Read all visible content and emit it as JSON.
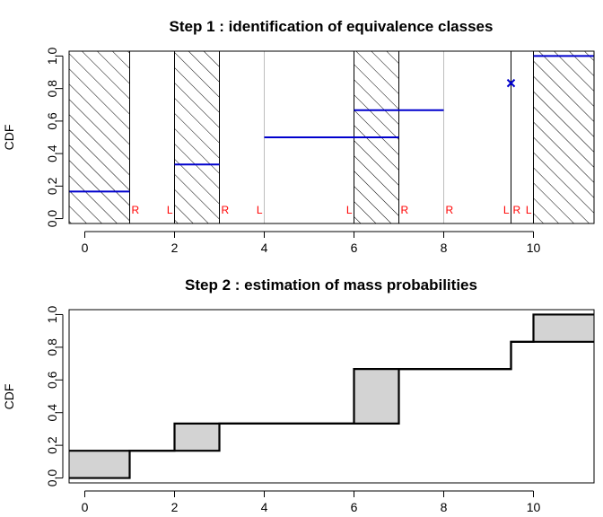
{
  "chart_data": [
    {
      "type": "step",
      "title": "Step 1 : identification of equivalence classes",
      "xlabel": "",
      "ylabel": "CDF",
      "xlim": [
        -0.35,
        11.35
      ],
      "ylim": [
        -0.03,
        1.03
      ],
      "xticks": [
        0,
        2,
        4,
        6,
        8,
        10
      ],
      "yticks": [
        0.0,
        0.2,
        0.4,
        0.6,
        0.8,
        1.0
      ],
      "ytick_labels": [
        "0.0",
        "0.2",
        "0.4",
        "0.6",
        "0.8",
        "1.0"
      ],
      "hatched_intervals": [
        [
          -0.35,
          1
        ],
        [
          2,
          3
        ],
        [
          6,
          7
        ],
        [
          10,
          11.35
        ]
      ],
      "cdf_segments": [
        {
          "x": [
            -0.35,
            1
          ],
          "y": 0.1667
        },
        {
          "x": [
            2,
            3
          ],
          "y": 0.3333
        },
        {
          "x": [
            4,
            7
          ],
          "y": 0.5
        },
        {
          "x": [
            6,
            8
          ],
          "y": 0.6667
        },
        {
          "x": [
            10,
            11.35
          ],
          "y": 1.0
        }
      ],
      "point_mass": {
        "x": 9.5,
        "y": 0.8333,
        "marker": "x"
      },
      "vertical_lines": [
        {
          "x": 1,
          "color": "#000000"
        },
        {
          "x": 2,
          "color": "#000000"
        },
        {
          "x": 3,
          "color": "#000000"
        },
        {
          "x": 4,
          "color": "#bebebe"
        },
        {
          "x": 6,
          "color": "#000000"
        },
        {
          "x": 7,
          "color": "#000000"
        },
        {
          "x": 8,
          "color": "#bebebe"
        },
        {
          "x": 9.5,
          "color": "#000000"
        },
        {
          "x": 10,
          "color": "#000000"
        }
      ],
      "endpoint_labels": [
        {
          "x": 1,
          "text": "R"
        },
        {
          "x": 2,
          "text": "L"
        },
        {
          "x": 3,
          "text": "R"
        },
        {
          "x": 4,
          "text": "L"
        },
        {
          "x": 6,
          "text": "L"
        },
        {
          "x": 7,
          "text": "R"
        },
        {
          "x": 8,
          "text": "R"
        },
        {
          "x": 9.5,
          "text": "L"
        },
        {
          "x": 9.5,
          "text": "R"
        },
        {
          "x": 10,
          "text": "L"
        }
      ],
      "colors": {
        "cdf": "#0000cd",
        "labels": "#ff0000",
        "frame": "#000000"
      }
    },
    {
      "type": "step",
      "title": "Step 2 : estimation of mass probabilities",
      "xlabel": "",
      "ylabel": "CDF",
      "xlim": [
        -0.35,
        11.35
      ],
      "ylim": [
        -0.03,
        1.03
      ],
      "xticks": [
        0,
        2,
        4,
        6,
        8,
        10
      ],
      "yticks": [
        0.0,
        0.2,
        0.4,
        0.6,
        0.8,
        1.0
      ],
      "ytick_labels": [
        "0.0",
        "0.2",
        "0.4",
        "0.6",
        "0.8",
        "1.0"
      ],
      "boxes": [
        {
          "x": [
            -0.35,
            1
          ],
          "y": [
            0.0,
            0.1667
          ]
        },
        {
          "x": [
            2,
            3
          ],
          "y": [
            0.1667,
            0.3333
          ]
        },
        {
          "x": [
            6,
            7
          ],
          "y": [
            0.3333,
            0.6667
          ]
        },
        {
          "x": [
            10,
            11.35
          ],
          "y": [
            0.8333,
            1.0
          ]
        }
      ],
      "lower_bound": [
        [
          -0.35,
          0
        ],
        [
          1,
          0
        ],
        [
          1,
          0.1667
        ],
        [
          3,
          0.1667
        ],
        [
          3,
          0.3333
        ],
        [
          7,
          0.3333
        ],
        [
          7,
          0.6667
        ],
        [
          9.5,
          0.6667
        ],
        [
          9.5,
          0.8333
        ],
        [
          11.35,
          0.8333
        ]
      ],
      "upper_bound": [
        [
          -0.35,
          0.1667
        ],
        [
          2,
          0.1667
        ],
        [
          2,
          0.3333
        ],
        [
          6,
          0.3333
        ],
        [
          6,
          0.6667
        ],
        [
          9.5,
          0.6667
        ],
        [
          9.5,
          0.8333
        ],
        [
          10,
          0.8333
        ],
        [
          10,
          1.0
        ],
        [
          11.35,
          1.0
        ]
      ],
      "colors": {
        "box_fill": "#d3d3d3",
        "line": "#000000"
      }
    }
  ]
}
